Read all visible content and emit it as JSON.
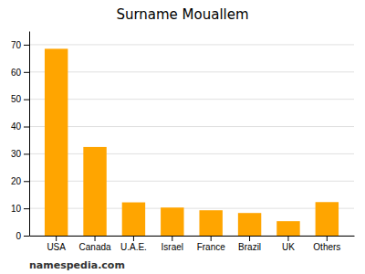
{
  "chart_data": {
    "type": "bar",
    "title": "Surname Mouallem",
    "categories": [
      "USA",
      "Canada",
      "U.A.E.",
      "Israel",
      "France",
      "Brazil",
      "UK",
      "Others"
    ],
    "values": [
      68.5,
      32.5,
      12.2,
      10.3,
      9.3,
      8.3,
      5.3,
      12.3
    ],
    "color": "#FFA500",
    "ylim": [
      0,
      75
    ],
    "yticks": [
      0,
      10,
      20,
      30,
      40,
      50,
      60,
      70
    ],
    "grid": true,
    "annotations": [
      "namespedia.com"
    ]
  }
}
